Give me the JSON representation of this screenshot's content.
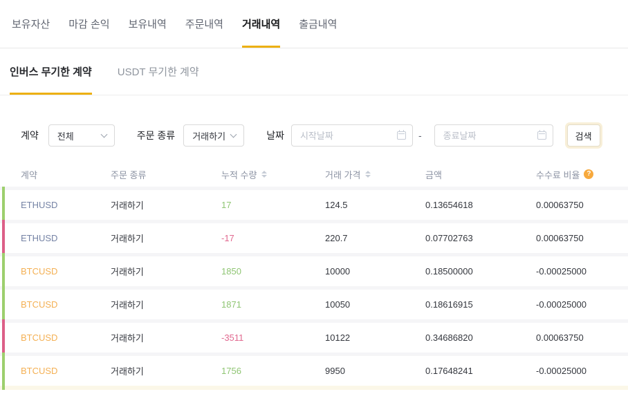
{
  "header_tabs": {
    "items": [
      "보유자산",
      "마감 손익",
      "보유내역",
      "주문내역",
      "거래내역",
      "출금내역"
    ],
    "active_index": 4
  },
  "sub_tabs": {
    "items": [
      "인버스 무기한 계약",
      "USDT 무기한 계약"
    ],
    "active_index": 0
  },
  "filters": {
    "contract_label": "계약",
    "contract_value": "전체",
    "order_type_label": "주문 종류",
    "order_type_value": "거래하기",
    "date_label": "날짜",
    "start_placeholder": "시작날짜",
    "end_placeholder": "종료날짜",
    "range_separator": "-",
    "search_label": "검색"
  },
  "table": {
    "help_icon_glyph": "?",
    "columns": [
      {
        "label": "계약",
        "sortable": false,
        "help": false
      },
      {
        "label": "주문 종류",
        "sortable": false,
        "help": false
      },
      {
        "label": "누적 수량",
        "sortable": true,
        "help": false
      },
      {
        "label": "거래 가격",
        "sortable": true,
        "help": false
      },
      {
        "label": "금액",
        "sortable": false,
        "help": false
      },
      {
        "label": "수수료 비율",
        "sortable": false,
        "help": true
      }
    ],
    "rows": [
      {
        "contract": "ETHUSD",
        "symbol": "eth",
        "order_type": "거래하기",
        "filled_qty": "17",
        "side": "positive",
        "trade_price": "124.5",
        "amount": "0.13654618",
        "fee_rate": "0.00063750"
      },
      {
        "contract": "ETHUSD",
        "symbol": "eth",
        "order_type": "거래하기",
        "filled_qty": "-17",
        "side": "negative",
        "trade_price": "220.7",
        "amount": "0.07702763",
        "fee_rate": "0.00063750"
      },
      {
        "contract": "BTCUSD",
        "symbol": "btc",
        "order_type": "거래하기",
        "filled_qty": "1850",
        "side": "positive",
        "trade_price": "10000",
        "amount": "0.18500000",
        "fee_rate": "-0.00025000"
      },
      {
        "contract": "BTCUSD",
        "symbol": "btc",
        "order_type": "거래하기",
        "filled_qty": "1871",
        "side": "positive",
        "trade_price": "10050",
        "amount": "0.18616915",
        "fee_rate": "-0.00025000"
      },
      {
        "contract": "BTCUSD",
        "symbol": "btc",
        "order_type": "거래하기",
        "filled_qty": "-3511",
        "side": "negative",
        "trade_price": "10122",
        "amount": "0.34686820",
        "fee_rate": "0.00063750"
      },
      {
        "contract": "BTCUSD",
        "symbol": "btc",
        "order_type": "거래하기",
        "filled_qty": "1756",
        "side": "positive",
        "trade_price": "9950",
        "amount": "0.17648241",
        "fee_rate": "-0.00025000"
      }
    ],
    "next_row_peek_side": "positive"
  },
  "colors": {
    "accent_yellow": "#edb00f",
    "positive_green_text": "#8fc573",
    "negative_pink_text": "#e1688f",
    "strip_green": "#9dcf6d",
    "strip_pink": "#dc5f87",
    "btc_symbol_orange": "#f4b054",
    "eth_symbol_slate": "#7583a5",
    "help_icon_orange": "#f7a93d",
    "row_gap_gray": "#f5f5f7",
    "next_row_peek_cream": "#fbf7e8"
  }
}
